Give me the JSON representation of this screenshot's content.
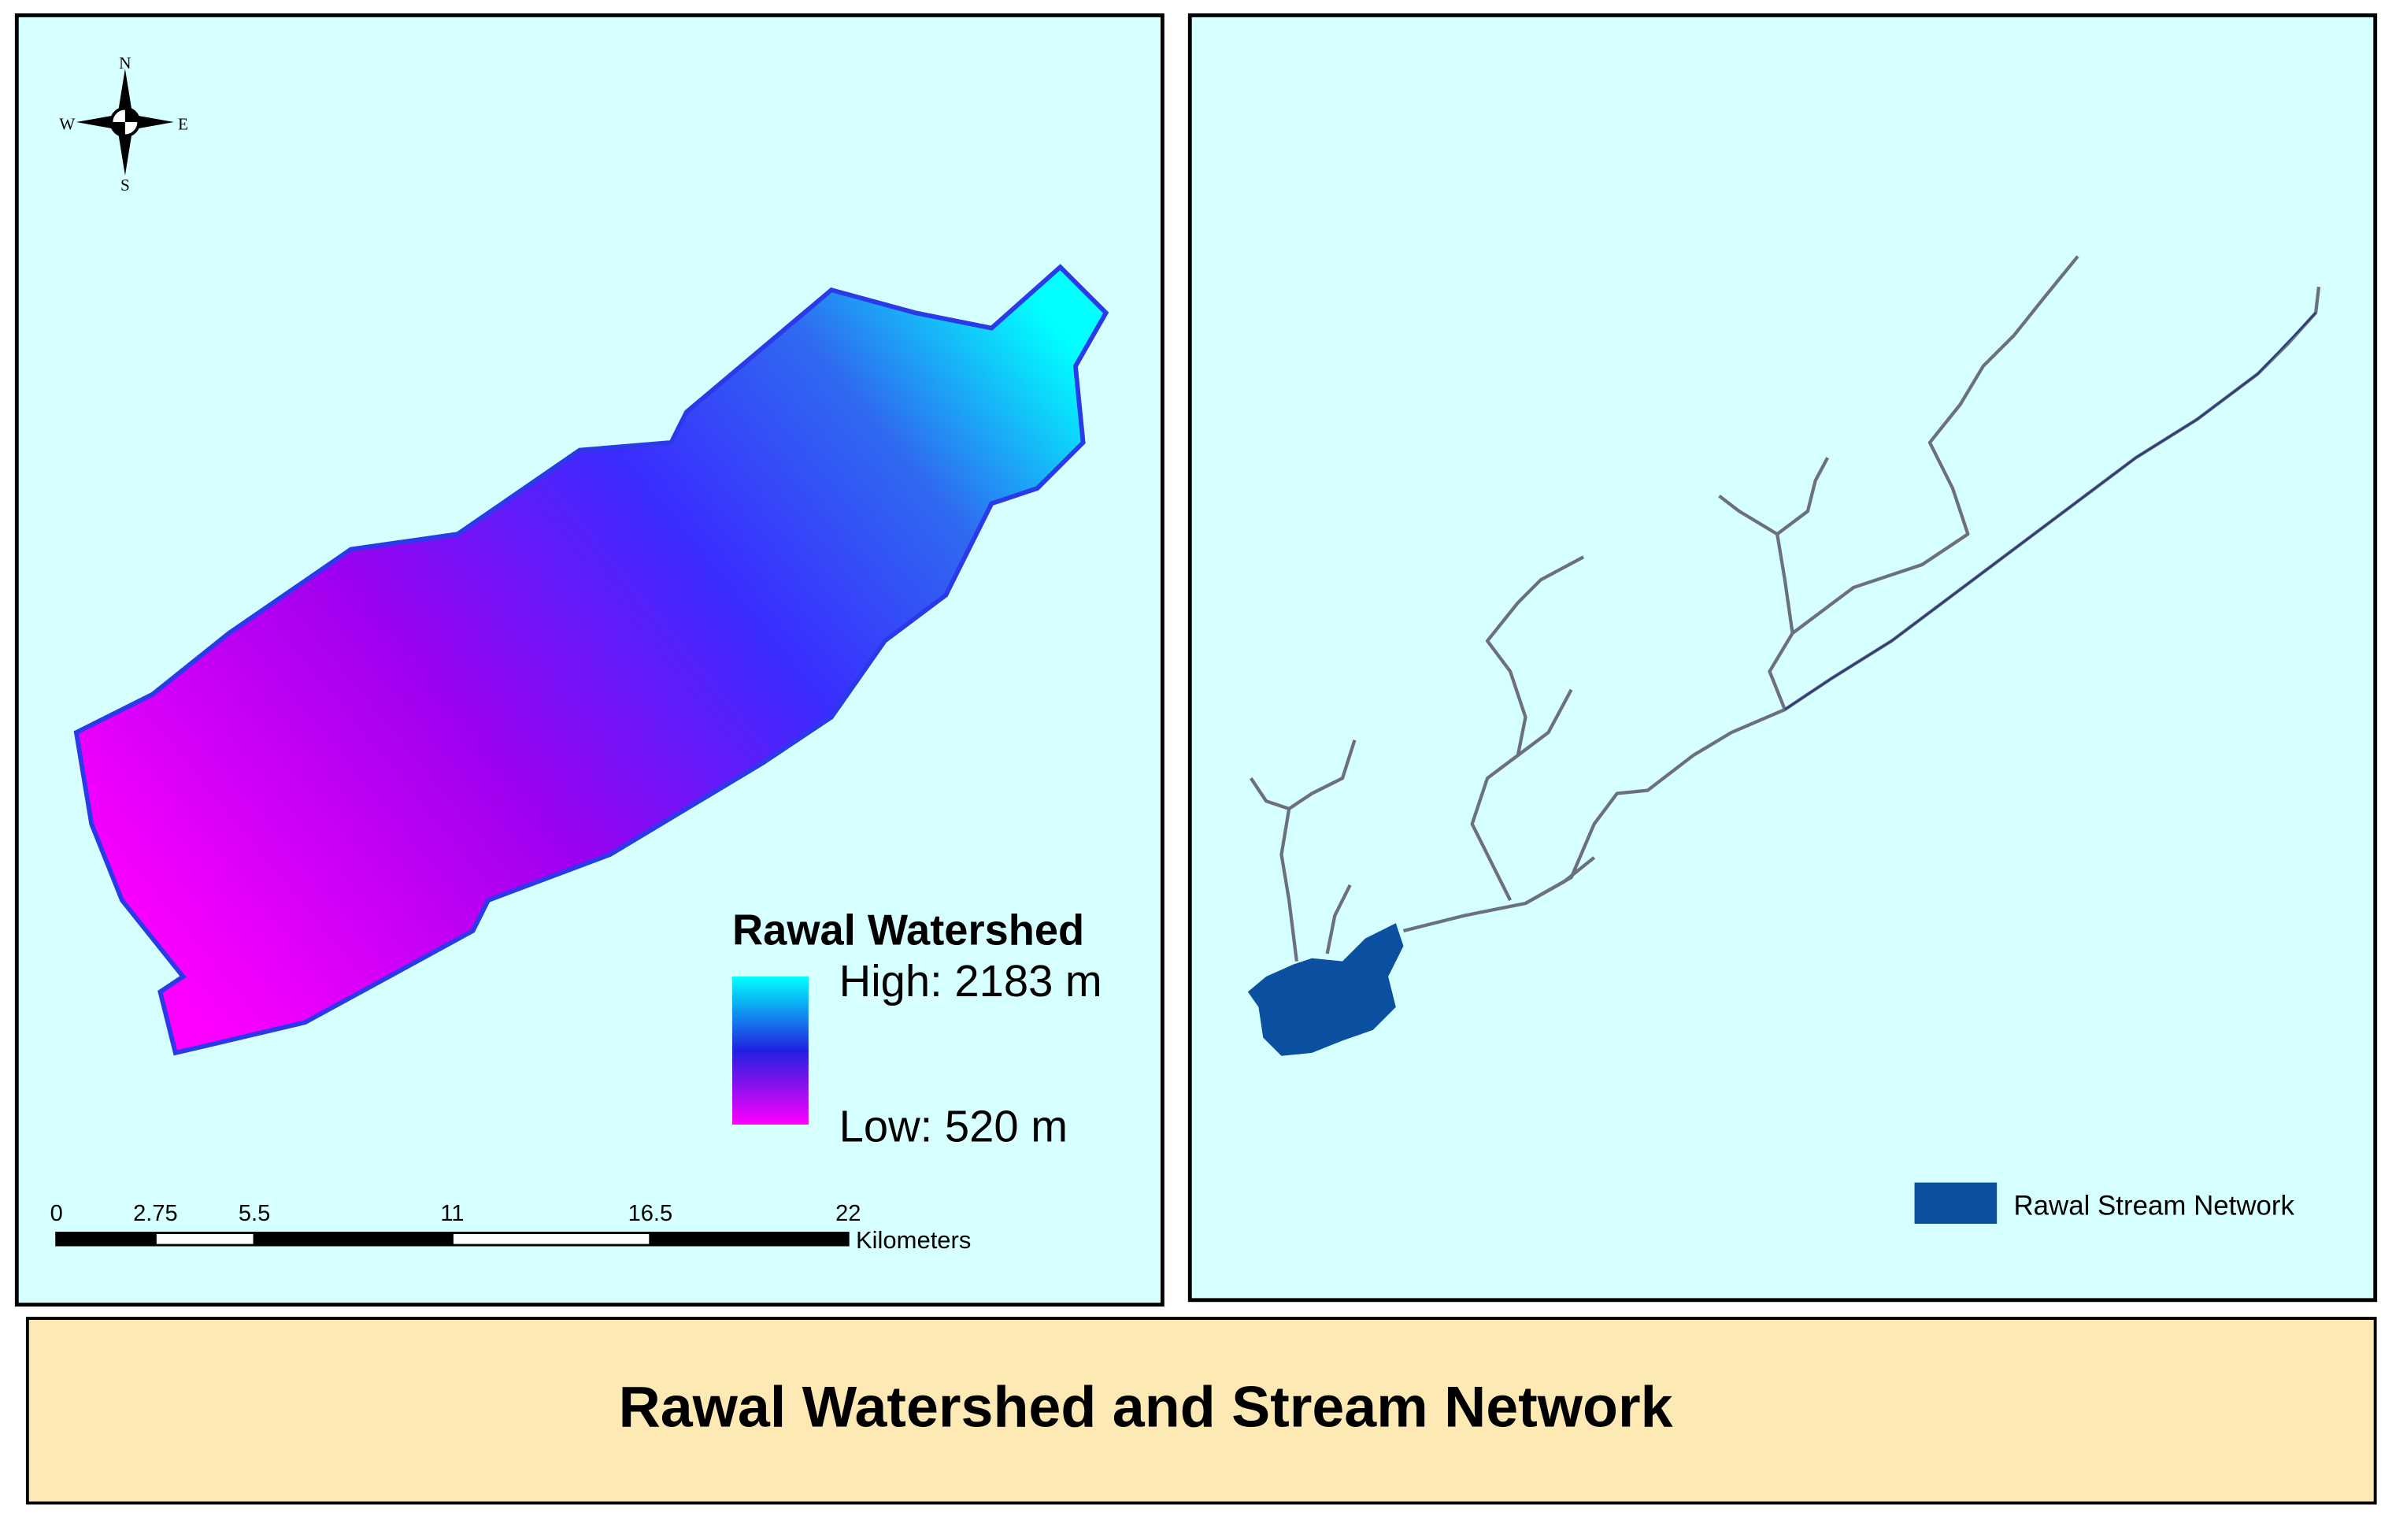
{
  "left_map": {
    "compass": {
      "n": "N",
      "s": "S",
      "e": "E",
      "w": "W"
    },
    "legend": {
      "title": "Rawal Watershed",
      "high": "High: 2183 m",
      "low": "Low: 520 m"
    },
    "scale_bar": {
      "ticks": [
        0,
        2.75,
        5.5,
        11,
        16.5,
        22
      ],
      "unit": "Kilometers"
    }
  },
  "right_map": {
    "legend": {
      "label": "Rawal Stream Network"
    }
  },
  "title": "Rawal Watershed and Stream Network"
}
